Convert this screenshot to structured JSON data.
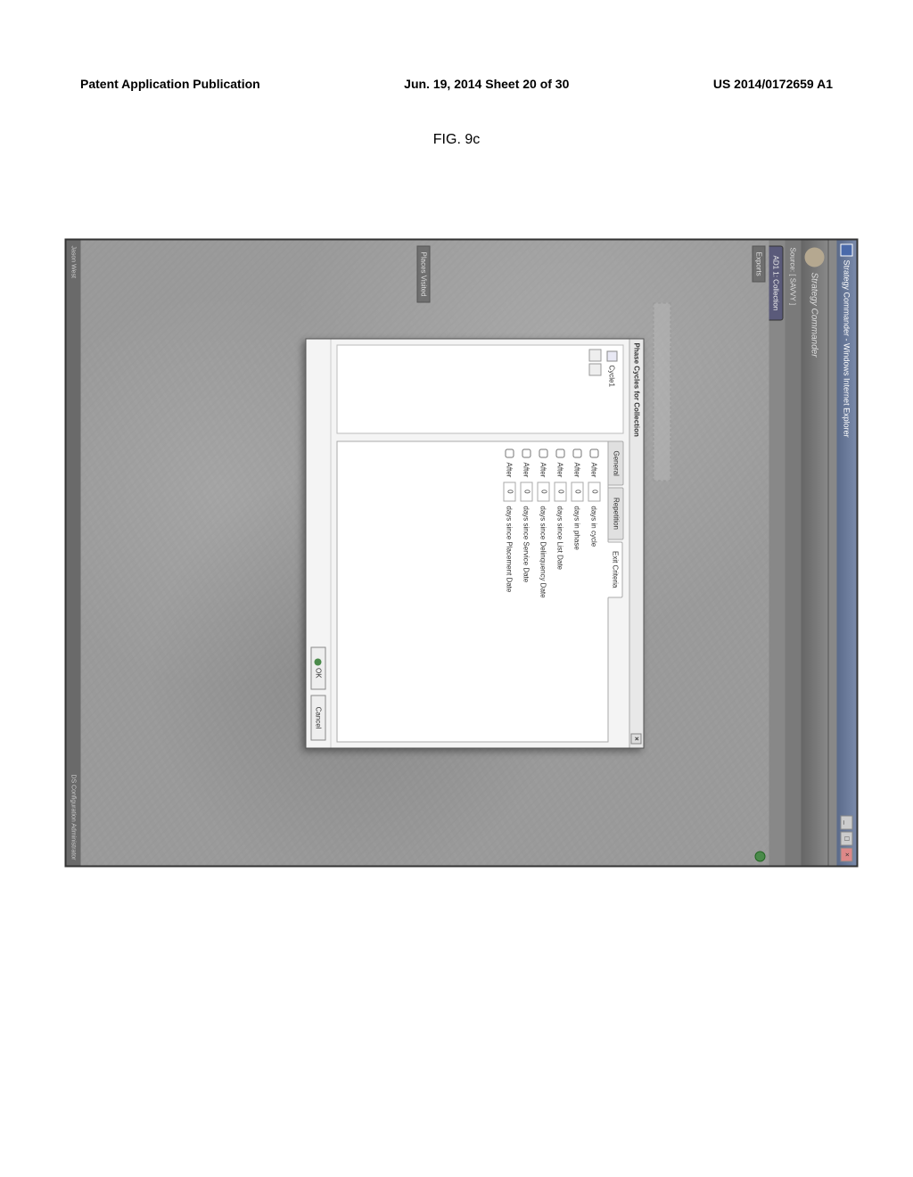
{
  "header": {
    "left": "Patent Application Publication",
    "center": "Jun. 19, 2014  Sheet 20 of 30",
    "right": "US 2014/0172659 A1"
  },
  "figure_label": "FIG. 9c",
  "titlebar": {
    "title": "Strategy Commander - Windows Internet Explorer",
    "min": "_",
    "max": "□",
    "close": "×"
  },
  "app_header": "Strategy Commander",
  "breadcrumb": "Source: [ SAVVY ]",
  "active_tab": "AD1 1: Collection",
  "panels": {
    "exports": "Exports",
    "places": "Places Visited"
  },
  "dialog": {
    "title": "Phase Cycles for Collection",
    "close": "×",
    "cycles": [
      {
        "label": "Cycle1"
      }
    ],
    "tabs": {
      "general": "General",
      "repetition": "Repetition",
      "exit": "Exit Criteria"
    },
    "criteria": [
      {
        "prefix": "After",
        "value": "0",
        "suffix": "days in cycle"
      },
      {
        "prefix": "After",
        "value": "0",
        "suffix": "days in phase"
      },
      {
        "prefix": "After",
        "value": "0",
        "suffix": "days since List Date"
      },
      {
        "prefix": "After",
        "value": "0",
        "suffix": "days since Delinquency Date"
      },
      {
        "prefix": "After",
        "value": "0",
        "suffix": "days since Service Date"
      },
      {
        "prefix": "After",
        "value": "0",
        "suffix": "days since Placement Date"
      }
    ],
    "buttons": {
      "ok": "OK",
      "cancel": "Cancel"
    }
  },
  "statusbar": {
    "left": "Jason West",
    "right": "DS Configuration Administrator"
  }
}
